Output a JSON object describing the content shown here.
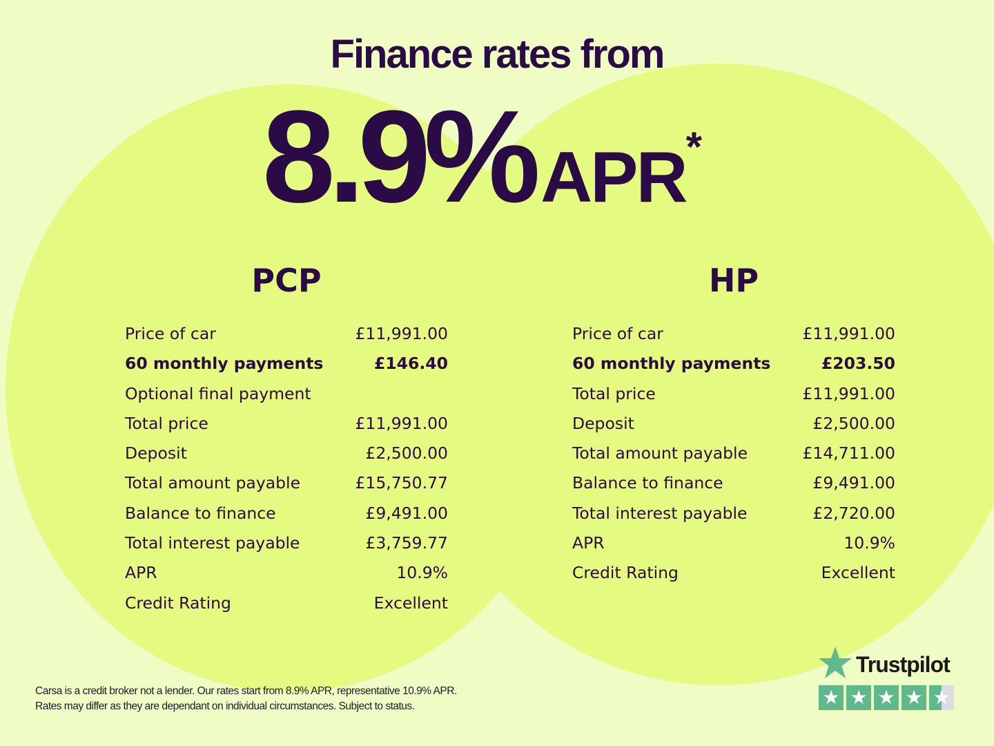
{
  "headline": {
    "title": "Finance rates from",
    "rate": "8.9%",
    "apr": "APR",
    "asterisk": "*"
  },
  "pcp": {
    "heading": "PCP",
    "rows": [
      {
        "label": "Price of car",
        "value": "£11,991.00"
      },
      {
        "label": "60 monthly payments",
        "value": "£146.40",
        "bold": true
      },
      {
        "label": "Optional final payment",
        "value": ""
      },
      {
        "label": "Total price",
        "value": "£11,991.00"
      },
      {
        "label": "Deposit",
        "value": "£2,500.00"
      },
      {
        "label": "Total amount payable",
        "value": "£15,750.77"
      },
      {
        "label": "Balance to finance",
        "value": "£9,491.00"
      },
      {
        "label": "Total interest payable",
        "value": "£3,759.77"
      },
      {
        "label": "APR",
        "value": "10.9%"
      },
      {
        "label": "Credit Rating",
        "value": "Excellent"
      }
    ]
  },
  "hp": {
    "heading": "HP",
    "rows": [
      {
        "label": "Price of car",
        "value": "£11,991.00"
      },
      {
        "label": "60 monthly payments",
        "value": "£203.50",
        "bold": true
      },
      {
        "label": "Total price",
        "value": "£11,991.00"
      },
      {
        "label": "Deposit",
        "value": "£2,500.00"
      },
      {
        "label": "Total amount payable",
        "value": "£14,711.00"
      },
      {
        "label": "Balance to finance",
        "value": "£9,491.00"
      },
      {
        "label": "Total interest payable",
        "value": "£2,720.00"
      },
      {
        "label": "APR",
        "value": "10.9%"
      },
      {
        "label": "Credit Rating",
        "value": "Excellent"
      }
    ]
  },
  "footer": {
    "line1": "Carsa is a credit broker not a lender. Our rates start from 8.9% APR, representative 10.9% APR.",
    "line2": "Rates may differ as they are dependant on individual circumstances. Subject to status."
  },
  "trustpilot": {
    "name": "Trustpilot",
    "rating_stars": 4.5,
    "max_stars": 5,
    "color": "#5fb98c"
  },
  "colors": {
    "background": "#effcc4",
    "circle": "#e5fa80",
    "text": "#2b0b46"
  }
}
